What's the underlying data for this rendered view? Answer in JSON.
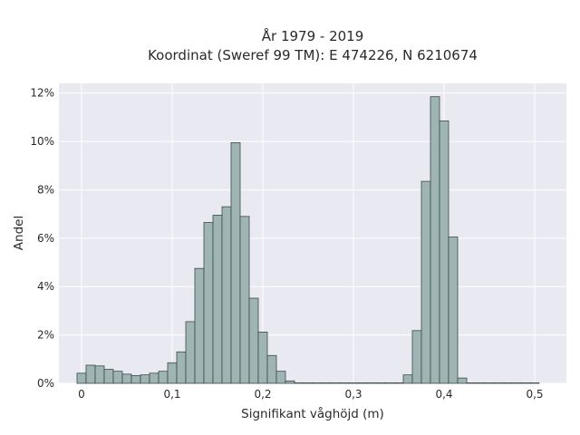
{
  "chart_data": {
    "type": "bar",
    "title_lines": [
      "År 1979 - 2019",
      "Koordinat (Sweref 99 TM): E 474226, N 6210674"
    ],
    "xlabel": "Signifikant våghöjd (m)",
    "ylabel": "Andel",
    "xlim": [
      -0.025,
      0.535
    ],
    "ylim": [
      0,
      12.4
    ],
    "x_ticks": [
      0,
      0.1,
      0.2,
      0.3,
      0.4,
      0.5
    ],
    "x_tick_labels": [
      "0",
      "0,1",
      "0,2",
      "0,3",
      "0,4",
      "0,5"
    ],
    "y_ticks": [
      0,
      2,
      4,
      6,
      8,
      10,
      12
    ],
    "y_tick_labels": [
      "0%",
      "2%",
      "4%",
      "6%",
      "8%",
      "10%",
      "12%"
    ],
    "bin_width": 0.01,
    "bin_starts": [
      0,
      0.01,
      0.02,
      0.03,
      0.04,
      0.05,
      0.06,
      0.07,
      0.08,
      0.09,
      0.1,
      0.11,
      0.12,
      0.13,
      0.14,
      0.15,
      0.16,
      0.17,
      0.18,
      0.19,
      0.2,
      0.21,
      0.22,
      0.23,
      0.24,
      0.25,
      0.26,
      0.27,
      0.28,
      0.29,
      0.3,
      0.31,
      0.32,
      0.33,
      0.34,
      0.35,
      0.36,
      0.37,
      0.38,
      0.39,
      0.4,
      0.41,
      0.42,
      0.43,
      0.44,
      0.45,
      0.46,
      0.47,
      0.48,
      0.49,
      0.5
    ],
    "values": [
      0.42,
      0.75,
      0.72,
      0.58,
      0.5,
      0.38,
      0.32,
      0.35,
      0.42,
      0.5,
      0.85,
      1.3,
      2.55,
      4.75,
      6.65,
      6.95,
      7.3,
      9.95,
      6.9,
      3.52,
      2.12,
      1.15,
      0.5,
      0.1,
      0.02,
      0.02,
      0.02,
      0.02,
      0.02,
      0.02,
      0.02,
      0.02,
      0.02,
      0.02,
      0.02,
      0.02,
      0.35,
      2.18,
      8.35,
      11.85,
      10.85,
      6.05,
      0.22,
      0.02,
      0.02,
      0.02,
      0.02,
      0.02,
      0.02,
      0.02,
      0.02
    ],
    "grid": true,
    "colors": {
      "bar_fill": "#9fb5b3",
      "bar_stroke": "#3b4a49",
      "plot_background": "#e9e9f1",
      "grid": "#ffffff"
    }
  }
}
